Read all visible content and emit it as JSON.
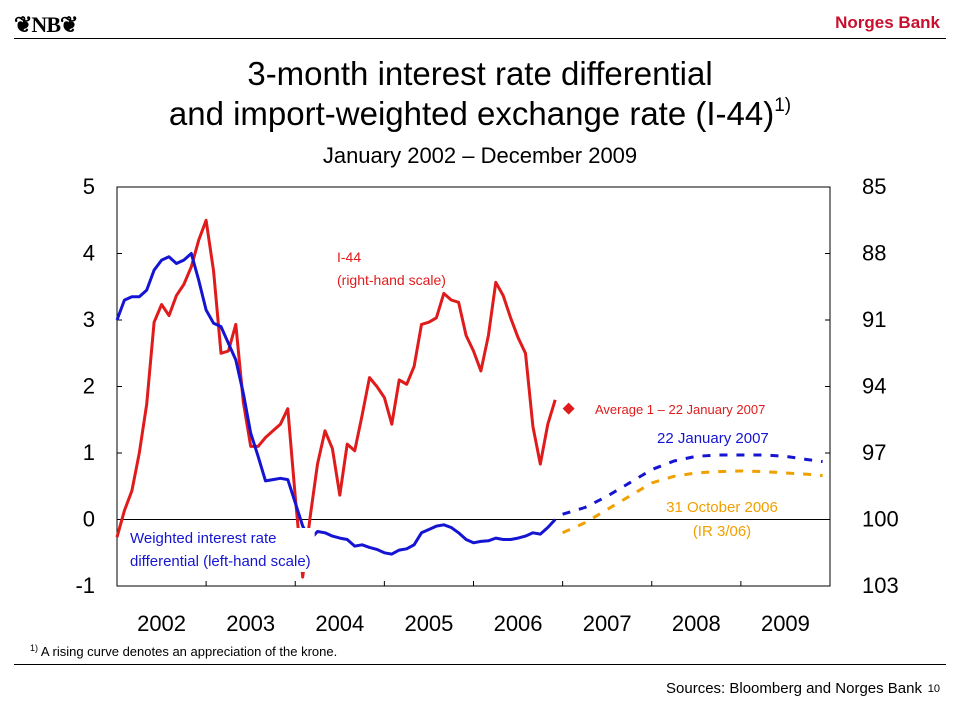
{
  "header": {
    "logo_text": "❦NB❦",
    "brand": "Norges Bank"
  },
  "title": {
    "line1": "3-month interest rate differential",
    "line2": "and import-weighted exchange rate (I-44)",
    "line2_note": "1)",
    "subtitle": "January 2002 – December 2009"
  },
  "footnote": {
    "marker": "1)",
    "text": "A rising curve denotes an appreciation of the krone."
  },
  "footer": {
    "sources": "Sources: Bloomberg and Norges Bank",
    "page": "10"
  },
  "chart_data": {
    "type": "line",
    "x_ticks": [
      "2002",
      "2003",
      "2004",
      "2005",
      "2006",
      "2007",
      "2008",
      "2009"
    ],
    "xlim": [
      "2002-01",
      "2009-12"
    ],
    "y_left": {
      "ticks": [
        "5",
        "4",
        "3",
        "2",
        "1",
        "0",
        "-1"
      ],
      "range": [
        -1,
        5
      ]
    },
    "y_right": {
      "ticks": [
        "85",
        "88",
        "91",
        "94",
        "97",
        "100",
        "103"
      ],
      "range": [
        103,
        85
      ],
      "inverted": true
    },
    "grid": false,
    "series": [
      {
        "key": "i44",
        "axis": "right",
        "color": "#e01b1b",
        "style": "solid",
        "x": [
          "2002-01",
          "2002-02",
          "2002-03",
          "2002-04",
          "2002-05",
          "2002-06",
          "2002-07",
          "2002-08",
          "2002-09",
          "2002-10",
          "2002-11",
          "2002-12",
          "2003-01",
          "2003-02",
          "2003-03",
          "2003-04",
          "2003-05",
          "2003-06",
          "2003-07",
          "2003-08",
          "2003-09",
          "2003-10",
          "2003-11",
          "2003-12",
          "2004-01",
          "2004-02",
          "2004-03",
          "2004-04",
          "2004-05",
          "2004-06",
          "2004-07",
          "2004-08",
          "2004-09",
          "2004-10",
          "2004-11",
          "2004-12",
          "2005-01",
          "2005-02",
          "2005-03",
          "2005-04",
          "2005-05",
          "2005-06",
          "2005-07",
          "2005-08",
          "2005-09",
          "2005-10",
          "2005-11",
          "2005-12",
          "2006-01",
          "2006-02",
          "2006-03",
          "2006-04",
          "2006-05",
          "2006-06",
          "2006-07",
          "2006-08",
          "2006-09",
          "2006-10",
          "2006-11",
          "2006-12"
        ],
        "y": [
          100.8,
          99.6,
          98.7,
          97.0,
          94.8,
          91.1,
          90.3,
          90.8,
          89.9,
          89.4,
          88.6,
          87.4,
          86.5,
          88.8,
          92.5,
          92.4,
          91.2,
          94.7,
          96.7,
          96.7,
          96.3,
          96.0,
          95.7,
          95.0,
          99.0,
          102.6,
          99.9,
          97.5,
          96.0,
          96.8,
          98.9,
          96.6,
          96.9,
          95.3,
          93.6,
          94.0,
          94.5,
          95.7,
          93.7,
          93.9,
          93.1,
          91.2,
          91.1,
          90.9,
          89.8,
          90.1,
          90.2,
          91.7,
          92.4,
          93.3,
          91.7,
          89.3,
          89.9,
          90.9,
          91.8,
          92.5,
          95.8,
          97.5,
          95.7,
          94.6
        ]
      },
      {
        "key": "diff",
        "axis": "left",
        "color": "#1414d2",
        "style": "solid",
        "x": [
          "2002-01",
          "2002-02",
          "2002-03",
          "2002-04",
          "2002-05",
          "2002-06",
          "2002-07",
          "2002-08",
          "2002-09",
          "2002-10",
          "2002-11",
          "2002-12",
          "2003-01",
          "2003-02",
          "2003-03",
          "2003-04",
          "2003-05",
          "2003-06",
          "2003-07",
          "2003-08",
          "2003-09",
          "2003-10",
          "2003-11",
          "2003-12",
          "2004-01",
          "2004-02",
          "2004-03",
          "2004-04",
          "2004-05",
          "2004-06",
          "2004-07",
          "2004-08",
          "2004-09",
          "2004-10",
          "2004-11",
          "2004-12",
          "2005-01",
          "2005-02",
          "2005-03",
          "2005-04",
          "2005-05",
          "2005-06",
          "2005-07",
          "2005-08",
          "2005-09",
          "2005-10",
          "2005-11",
          "2005-12",
          "2006-01",
          "2006-02",
          "2006-03",
          "2006-04",
          "2006-05",
          "2006-06",
          "2006-07",
          "2006-08",
          "2006-09",
          "2006-10",
          "2006-11",
          "2006-12"
        ],
        "y": [
          3.0,
          3.3,
          3.35,
          3.35,
          3.45,
          3.75,
          3.9,
          3.95,
          3.85,
          3.9,
          4.0,
          3.6,
          3.15,
          2.95,
          2.9,
          2.65,
          2.4,
          1.9,
          1.3,
          0.95,
          0.58,
          0.6,
          0.62,
          0.6,
          0.25,
          -0.1,
          -0.3,
          -0.18,
          -0.2,
          -0.25,
          -0.28,
          -0.3,
          -0.4,
          -0.38,
          -0.42,
          -0.45,
          -0.5,
          -0.52,
          -0.46,
          -0.44,
          -0.38,
          -0.2,
          -0.15,
          -0.1,
          -0.08,
          -0.12,
          -0.2,
          -0.3,
          -0.35,
          -0.33,
          -0.32,
          -0.28,
          -0.3,
          -0.3,
          -0.28,
          -0.25,
          -0.2,
          -0.22,
          -0.12,
          0.0
        ]
      },
      {
        "key": "fwd_jan07",
        "axis": "left",
        "color": "#1414d2",
        "style": "dashed",
        "x": [
          "2007-01",
          "2007-04",
          "2007-07",
          "2007-10",
          "2008-01",
          "2008-04",
          "2008-07",
          "2008-10",
          "2009-01",
          "2009-04",
          "2009-07",
          "2009-10",
          "2009-12"
        ],
        "y": [
          0.08,
          0.18,
          0.35,
          0.55,
          0.75,
          0.88,
          0.95,
          0.97,
          0.97,
          0.97,
          0.95,
          0.9,
          0.87
        ]
      },
      {
        "key": "fwd_oct06",
        "axis": "left",
        "color": "#f0a000",
        "style": "dashed",
        "x": [
          "2007-01",
          "2007-04",
          "2007-07",
          "2007-10",
          "2008-01",
          "2008-04",
          "2008-07",
          "2008-10",
          "2009-01",
          "2009-04",
          "2009-07",
          "2009-10",
          "2009-12"
        ],
        "y": [
          -0.2,
          -0.05,
          0.15,
          0.35,
          0.55,
          0.65,
          0.7,
          0.72,
          0.73,
          0.72,
          0.7,
          0.68,
          0.66
        ]
      },
      {
        "key": "avg_jan07",
        "axis": "right",
        "color": "#e01b1b",
        "style": "marker",
        "x": [
          "2007-01"
        ],
        "y": [
          95.0
        ]
      }
    ],
    "annotations": {
      "i44_line1": "I-44",
      "i44_line2": "(right-hand scale)",
      "avg": "Average 1 – 22 January 2007",
      "jan07": "22 January 2007",
      "oct06_line1": "31 October 2006",
      "oct06_line2": "(IR 3/06)",
      "diff_line1": "Weighted interest rate",
      "diff_line2": "differential (left-hand scale)"
    }
  }
}
